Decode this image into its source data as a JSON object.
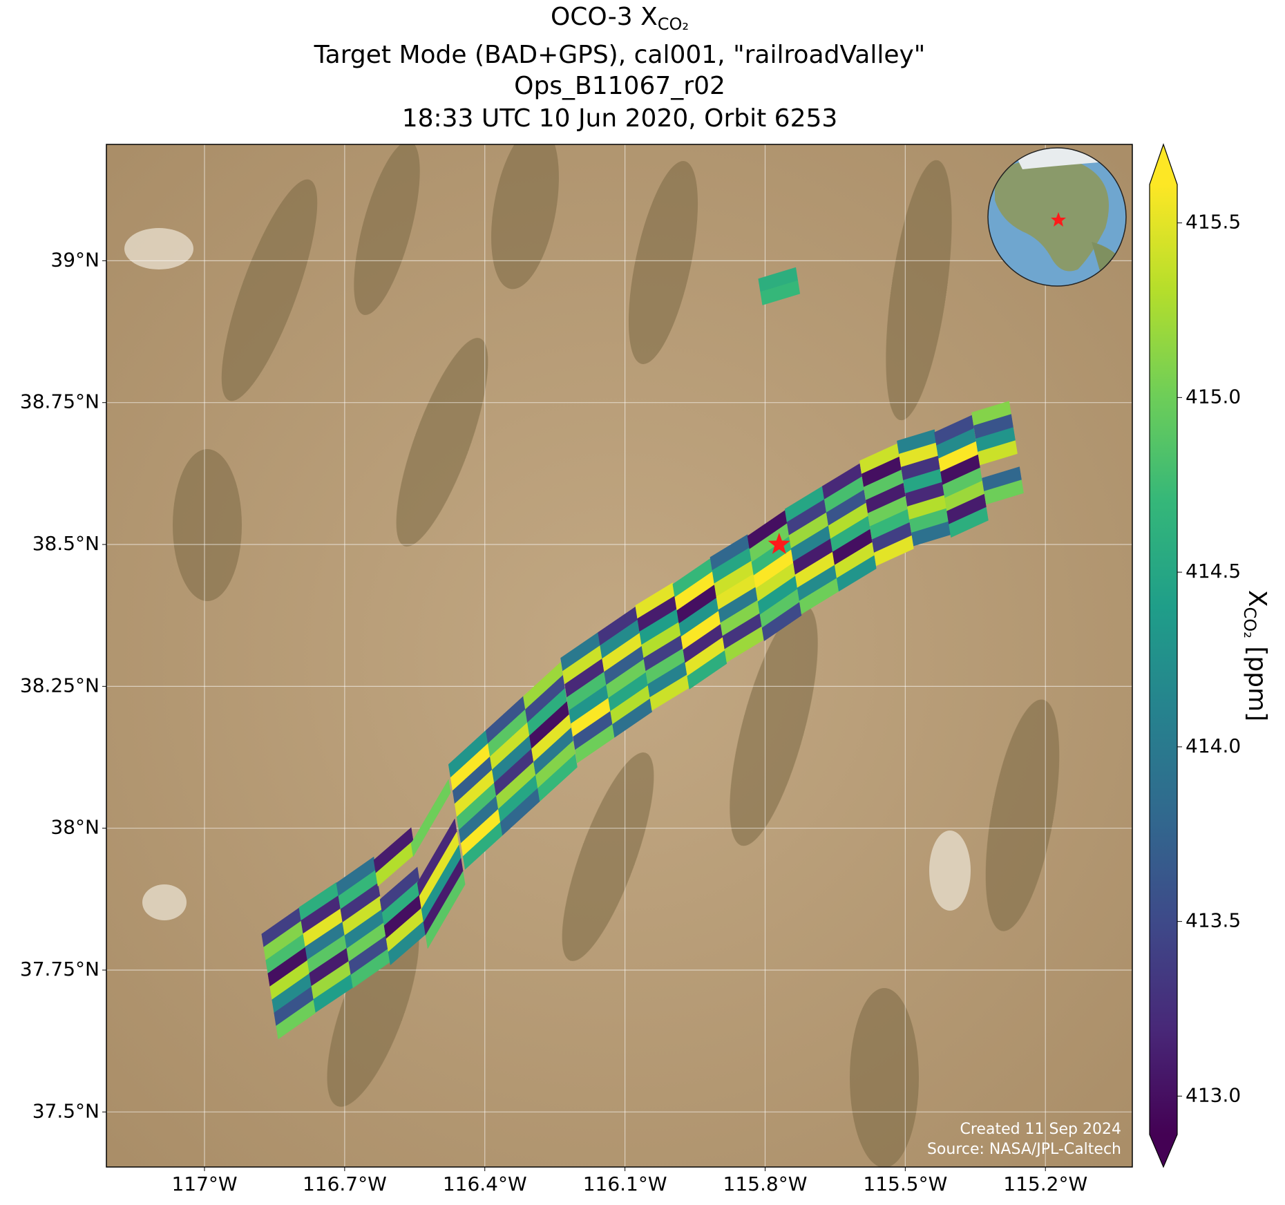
{
  "chart_data": {
    "type": "swath-map",
    "title": {
      "prefix": "OCO-3 X",
      "subscript": "CO₂"
    },
    "subtitle_lines": [
      "Target Mode (BAD+GPS), cal001, \"railroadValley\"",
      "Ops_B11067_r02",
      "18:33 UTC 10 Jun 2020, Orbit 6253"
    ],
    "xlim": [
      -117.21,
      -115.014
    ],
    "ylim": [
      37.403,
      39.205
    ],
    "xticks": [
      {
        "value": -117,
        "label": "117°W"
      },
      {
        "value": -116.7,
        "label": "116.7°W"
      },
      {
        "value": -116.4,
        "label": "116.4°W"
      },
      {
        "value": -116.1,
        "label": "116.1°W"
      },
      {
        "value": -115.8,
        "label": "115.8°W"
      },
      {
        "value": -115.5,
        "label": "115.5°W"
      },
      {
        "value": -115.2,
        "label": "115.2°W"
      }
    ],
    "yticks": [
      {
        "value": 37.5,
        "label": "37.5°N"
      },
      {
        "value": 37.75,
        "label": "37.75°N"
      },
      {
        "value": 38,
        "label": "38°N"
      },
      {
        "value": 38.25,
        "label": "38.25°N"
      },
      {
        "value": 38.5,
        "label": "38.5°N"
      },
      {
        "value": 38.75,
        "label": "38.75°N"
      },
      {
        "value": 39,
        "label": "39°N"
      }
    ],
    "grid": true,
    "colormap": "viridis",
    "clim": [
      412.89,
      415.61
    ],
    "cticks": [
      {
        "value": 413,
        "label": "413.0"
      },
      {
        "value": 413.5,
        "label": "413.5"
      },
      {
        "value": 414,
        "label": "414.0"
      },
      {
        "value": 414.5,
        "label": "414.5"
      },
      {
        "value": 415,
        "label": "415.0"
      },
      {
        "value": 415.5,
        "label": "415.5"
      }
    ],
    "colorbar_label": {
      "prefix": "X",
      "subscript": "CO₂",
      "suffix": " [ppm]"
    },
    "target": {
      "lon": -115.77,
      "lat": 38.5,
      "color": "#ff1a1a"
    },
    "annotations": [
      "Created 11 Sep 2024",
      "Source: NASA/JPL-Caltech"
    ],
    "scans": [
      {
        "lon": -116.82,
        "lat": 37.744,
        "values": [
          413.4,
          415.1,
          414.8,
          413.0,
          415.3,
          414.2,
          413.6,
          415.0
        ]
      },
      {
        "lon": -116.74,
        "lat": 37.79,
        "values": [
          414.6,
          413.2,
          415.5,
          414.0,
          414.9,
          413.1,
          415.2,
          414.4
        ]
      },
      {
        "lon": -116.66,
        "lat": 37.834,
        "values": [
          413.9,
          414.7,
          413.3,
          415.4,
          414.1,
          415.0,
          413.5,
          414.8
        ]
      },
      {
        "lon": -116.58,
        "lat": 37.88,
        "values": [
          413.1,
          415.3,
          null,
          413.4,
          414.6,
          413.0,
          415.4,
          414.2
        ]
      },
      {
        "lon": -116.5,
        "lat": 37.937,
        "values": [
          415.0,
          null,
          null,
          413.2,
          415.5,
          414.3,
          413.1,
          414.9
        ]
      },
      {
        "lon": -116.42,
        "lat": 38.05,
        "values": [
          414.3,
          415.6,
          413.7,
          415.5,
          414.8,
          413.9,
          415.6,
          414.6
        ]
      },
      {
        "lon": -116.34,
        "lat": 38.11,
        "values": [
          413.6,
          414.9,
          415.4,
          414.1,
          413.3,
          415.2,
          414.5,
          413.8
        ]
      },
      {
        "lon": -116.26,
        "lat": 38.17,
        "values": [
          415.2,
          413.5,
          414.6,
          413.0,
          415.5,
          414.0,
          415.1,
          414.7
        ]
      },
      {
        "lon": -116.18,
        "lat": 38.23,
        "values": [
          414.0,
          415.4,
          413.2,
          414.8,
          414.3,
          415.6,
          413.6,
          415.0
        ]
      },
      {
        "lon": -116.1,
        "lat": 38.275,
        "values": [
          413.3,
          414.2,
          415.5,
          413.7,
          415.0,
          414.5,
          415.3,
          413.9
        ]
      },
      {
        "lon": -116.02,
        "lat": 38.32,
        "values": [
          415.5,
          413.1,
          414.4,
          415.3,
          413.4,
          414.9,
          414.1,
          415.4
        ]
      },
      {
        "lon": -115.94,
        "lat": 38.36,
        "values": [
          414.7,
          415.6,
          413.0,
          414.3,
          415.6,
          413.2,
          415.5,
          414.6
        ]
      },
      {
        "lon": -115.86,
        "lat": 38.405,
        "values": [
          413.8,
          414.5,
          415.4,
          415.5,
          414.0,
          415.1,
          413.3,
          415.2
        ]
      },
      {
        "lon": -115.78,
        "lat": 38.445,
        "values": [
          413.0,
          415.0,
          414.7,
          415.6,
          415.4,
          414.4,
          414.9,
          413.5
        ]
      },
      {
        "lon": -115.7,
        "lat": 38.49,
        "values": [
          414.5,
          413.4,
          415.2,
          414.1,
          413.1,
          415.5,
          414.2,
          415.0
        ]
      },
      {
        "lon": -115.62,
        "lat": 38.53,
        "values": [
          413.2,
          414.8,
          413.6,
          415.3,
          414.6,
          413.0,
          415.4,
          414.3
        ]
      },
      {
        "lon": -115.54,
        "lat": 38.57,
        "values": [
          415.4,
          413.0,
          414.9,
          413.1,
          415.0,
          414.7,
          413.4,
          415.5
        ]
      },
      {
        "lon": -115.46,
        "lat": 38.6,
        "values": [
          414.1,
          415.5,
          413.3,
          414.5,
          413.2,
          415.3,
          414.8,
          413.9
        ]
      },
      {
        "lon": -115.38,
        "lat": 38.62,
        "values": [
          413.5,
          414.2,
          415.6,
          413.0,
          414.9,
          415.2,
          413.1,
          414.6
        ]
      },
      {
        "lon": -115.3,
        "lat": 38.65,
        "values": [
          415.1,
          413.6,
          414.3,
          415.4,
          null,
          413.8,
          415.0,
          null
        ]
      },
      {
        "lon": -115.77,
        "lat": 38.955,
        "values": [
          414.6,
          414.7
        ]
      }
    ]
  }
}
